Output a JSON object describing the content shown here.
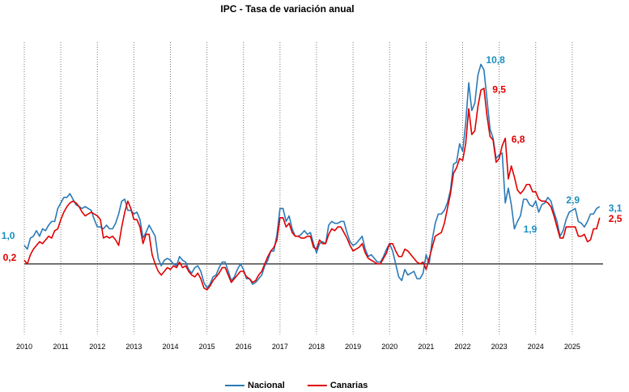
{
  "chart_data": {
    "type": "line",
    "title": "IPC - Tasa de variación anual",
    "x": [
      2010,
      2010.083,
      2010.167,
      2010.25,
      2010.333,
      2010.417,
      2010.5,
      2010.583,
      2010.667,
      2010.75,
      2010.833,
      2010.917,
      2011,
      2011.083,
      2011.167,
      2011.25,
      2011.333,
      2011.417,
      2011.5,
      2011.583,
      2011.667,
      2011.75,
      2011.833,
      2011.917,
      2012,
      2012.083,
      2012.167,
      2012.25,
      2012.333,
      2012.417,
      2012.5,
      2012.583,
      2012.667,
      2012.75,
      2012.833,
      2012.917,
      2013,
      2013.083,
      2013.167,
      2013.25,
      2013.333,
      2013.417,
      2013.5,
      2013.583,
      2013.667,
      2013.75,
      2013.833,
      2013.917,
      2014,
      2014.083,
      2014.167,
      2014.25,
      2014.333,
      2014.417,
      2014.5,
      2014.583,
      2014.667,
      2014.75,
      2014.833,
      2014.917,
      2015,
      2015.083,
      2015.167,
      2015.25,
      2015.333,
      2015.417,
      2015.5,
      2015.583,
      2015.667,
      2015.75,
      2015.833,
      2015.917,
      2016,
      2016.083,
      2016.167,
      2016.25,
      2016.333,
      2016.417,
      2016.5,
      2016.583,
      2016.667,
      2016.75,
      2016.833,
      2016.917,
      2017,
      2017.083,
      2017.167,
      2017.25,
      2017.333,
      2017.417,
      2017.5,
      2017.583,
      2017.667,
      2017.75,
      2017.833,
      2017.917,
      2018,
      2018.083,
      2018.167,
      2018.25,
      2018.333,
      2018.417,
      2018.5,
      2018.583,
      2018.667,
      2018.75,
      2018.833,
      2018.917,
      2019,
      2019.083,
      2019.167,
      2019.25,
      2019.333,
      2019.417,
      2019.5,
      2019.583,
      2019.667,
      2019.75,
      2019.833,
      2019.917,
      2020,
      2020.083,
      2020.167,
      2020.25,
      2020.333,
      2020.417,
      2020.5,
      2020.583,
      2020.667,
      2020.75,
      2020.833,
      2020.917,
      2021,
      2021.083,
      2021.167,
      2021.25,
      2021.333,
      2021.417,
      2021.5,
      2021.583,
      2021.667,
      2021.75,
      2021.833,
      2021.917,
      2022,
      2022.083,
      2022.167,
      2022.25,
      2022.333,
      2022.417,
      2022.5,
      2022.583,
      2022.667,
      2022.75,
      2022.833,
      2022.917,
      2023,
      2023.083,
      2023.167,
      2023.25,
      2023.333,
      2023.417,
      2023.5,
      2023.583,
      2023.667,
      2023.75,
      2023.833,
      2023.917,
      2024,
      2024.083,
      2024.167,
      2024.25,
      2024.333,
      2024.417,
      2024.5,
      2024.583,
      2024.667,
      2024.75,
      2024.833,
      2024.917,
      2025,
      2025.083,
      2025.167,
      2025.25,
      2025.333,
      2025.417,
      2025.5,
      2025.583,
      2025.667,
      2025.75
    ],
    "series": [
      {
        "name": "Nacional",
        "color": "#2a7ab8",
        "values": [
          1.0,
          0.8,
          1.4,
          1.5,
          1.8,
          1.5,
          1.9,
          1.8,
          2.1,
          2.3,
          2.3,
          3.0,
          3.3,
          3.6,
          3.6,
          3.8,
          3.5,
          3.2,
          3.1,
          3.0,
          3.1,
          3.0,
          2.9,
          2.4,
          2.0,
          2.0,
          1.9,
          2.1,
          1.9,
          1.9,
          2.2,
          2.7,
          3.4,
          3.5,
          2.9,
          2.9,
          2.7,
          2.8,
          2.4,
          1.4,
          1.7,
          2.1,
          1.8,
          1.5,
          0.3,
          -0.1,
          0.2,
          0.3,
          0.2,
          0.0,
          -0.1,
          0.4,
          0.2,
          0.1,
          -0.3,
          -0.5,
          -0.2,
          -0.1,
          -0.4,
          -1.0,
          -1.3,
          -1.1,
          -0.7,
          -0.6,
          -0.2,
          0.1,
          0.1,
          -0.4,
          -0.9,
          -0.7,
          -0.3,
          0.0,
          -0.3,
          -0.8,
          -0.8,
          -1.1,
          -1.0,
          -0.8,
          -0.6,
          -0.1,
          0.2,
          0.7,
          0.7,
          1.6,
          3.0,
          3.0,
          2.3,
          2.6,
          1.9,
          1.5,
          1.5,
          1.6,
          1.8,
          1.6,
          1.7,
          1.1,
          0.6,
          1.1,
          1.2,
          1.1,
          2.1,
          2.3,
          2.2,
          2.2,
          2.3,
          2.3,
          1.7,
          1.2,
          1.0,
          1.1,
          1.3,
          1.5,
          0.8,
          0.4,
          0.5,
          0.3,
          0.1,
          0.1,
          0.4,
          0.8,
          1.1,
          0.7,
          0.0,
          -0.7,
          -0.9,
          -0.3,
          -0.6,
          -0.5,
          -0.4,
          -0.8,
          -0.8,
          -0.5,
          0.5,
          0.0,
          1.3,
          2.2,
          2.7,
          2.7,
          2.9,
          3.3,
          4.0,
          5.4,
          5.5,
          6.5,
          6.1,
          7.6,
          9.8,
          8.3,
          8.7,
          10.2,
          10.8,
          10.5,
          8.9,
          7.3,
          6.8,
          5.7,
          5.9,
          6.0,
          3.3,
          4.1,
          3.2,
          1.9,
          2.3,
          2.6,
          3.5,
          3.5,
          3.2,
          3.1,
          3.4,
          2.8,
          3.2,
          3.3,
          3.6,
          3.4,
          2.8,
          2.3,
          1.5,
          1.8,
          2.4,
          2.8,
          2.9,
          3.0,
          2.3,
          2.2,
          2.0,
          2.3,
          2.7,
          2.7,
          3.0,
          3.1
        ]
      },
      {
        "name": "Canarias",
        "color": "#e00000",
        "values": [
          0.2,
          0.0,
          0.5,
          0.8,
          1.0,
          1.2,
          1.1,
          1.3,
          1.5,
          1.4,
          1.8,
          1.9,
          2.4,
          2.8,
          3.1,
          3.3,
          3.4,
          3.3,
          3.1,
          2.8,
          2.6,
          2.7,
          2.8,
          2.7,
          2.6,
          2.4,
          1.4,
          1.5,
          1.4,
          1.5,
          1.3,
          1.0,
          2.0,
          2.8,
          3.4,
          3.0,
          2.4,
          2.4,
          2.0,
          1.1,
          1.6,
          1.6,
          0.5,
          0.0,
          -0.4,
          -0.6,
          -0.4,
          -0.2,
          -0.3,
          -0.1,
          -0.2,
          0.1,
          -0.2,
          -0.1,
          -0.4,
          -0.6,
          -0.7,
          -0.5,
          -0.8,
          -1.3,
          -1.4,
          -1.2,
          -0.9,
          -0.7,
          -0.5,
          -0.2,
          -0.2,
          -0.6,
          -1.0,
          -0.8,
          -0.6,
          -0.4,
          -0.4,
          -0.7,
          -0.8,
          -1.0,
          -0.9,
          -0.6,
          -0.4,
          0.0,
          0.4,
          0.7,
          0.9,
          1.3,
          2.5,
          2.5,
          2.0,
          2.2,
          1.7,
          1.5,
          1.5,
          1.4,
          1.4,
          1.5,
          1.5,
          0.9,
          0.8,
          1.3,
          1.1,
          1.1,
          1.6,
          1.9,
          1.8,
          2.0,
          2.0,
          1.7,
          1.4,
          1.0,
          0.7,
          0.8,
          0.9,
          1.1,
          0.6,
          0.3,
          0.2,
          0.1,
          0.0,
          0.0,
          0.3,
          0.6,
          1.1,
          1.1,
          0.7,
          0.4,
          0.4,
          0.8,
          0.7,
          0.5,
          0.3,
          0.1,
          0.0,
          0.1,
          -0.3,
          0.3,
          0.9,
          1.5,
          1.6,
          1.7,
          2.2,
          3.0,
          3.8,
          4.9,
          5.2,
          5.7,
          5.6,
          6.5,
          8.4,
          7.0,
          7.2,
          8.5,
          9.4,
          9.5,
          8.0,
          6.9,
          6.7,
          5.5,
          5.7,
          6.4,
          6.8,
          4.6,
          5.3,
          4.7,
          4.0,
          3.8,
          4.0,
          4.3,
          4.3,
          3.9,
          3.9,
          3.5,
          3.4,
          3.4,
          3.3,
          3.1,
          2.6,
          2.0,
          1.4,
          1.4,
          2.0,
          2.0,
          2.0,
          2.0,
          1.5,
          1.5,
          1.6,
          1.2,
          1.3,
          1.9,
          1.9,
          2.5
        ]
      }
    ],
    "xlim": [
      2010,
      2026
    ],
    "xticks": [
      2010,
      2011,
      2012,
      2013,
      2014,
      2015,
      2016,
      2017,
      2018,
      2019,
      2020,
      2021,
      2022,
      2023,
      2024,
      2025
    ],
    "ylim": [
      -3.8,
      12
    ],
    "grid": true,
    "legend": "bottom",
    "annotations": [
      {
        "text": "1,0",
        "color": "#1a8fc0",
        "x": 2009.56,
        "y": 1.49
      },
      {
        "text": "0,2",
        "color": "#e00000",
        "x": 2009.6,
        "y": 0.31
      },
      {
        "text": "10,8",
        "color": "#1a8fc0",
        "x": 2022.9,
        "y": 11.0
      },
      {
        "text": "9,5",
        "color": "#e00000",
        "x": 2023.0,
        "y": 9.39
      },
      {
        "text": "6,8",
        "color": "#e00000",
        "x": 2023.52,
        "y": 6.71
      },
      {
        "text": "1,9",
        "color": "#1a8fc0",
        "x": 2023.85,
        "y": 1.84
      },
      {
        "text": "2,9",
        "color": "#1a8fc0",
        "x": 2025.02,
        "y": 3.42
      },
      {
        "text": "3,1",
        "color": "#1a8fc0",
        "x": 2026.18,
        "y": 2.98
      },
      {
        "text": "2,5",
        "color": "#e00000",
        "x": 2026.18,
        "y": 2.41
      }
    ]
  }
}
